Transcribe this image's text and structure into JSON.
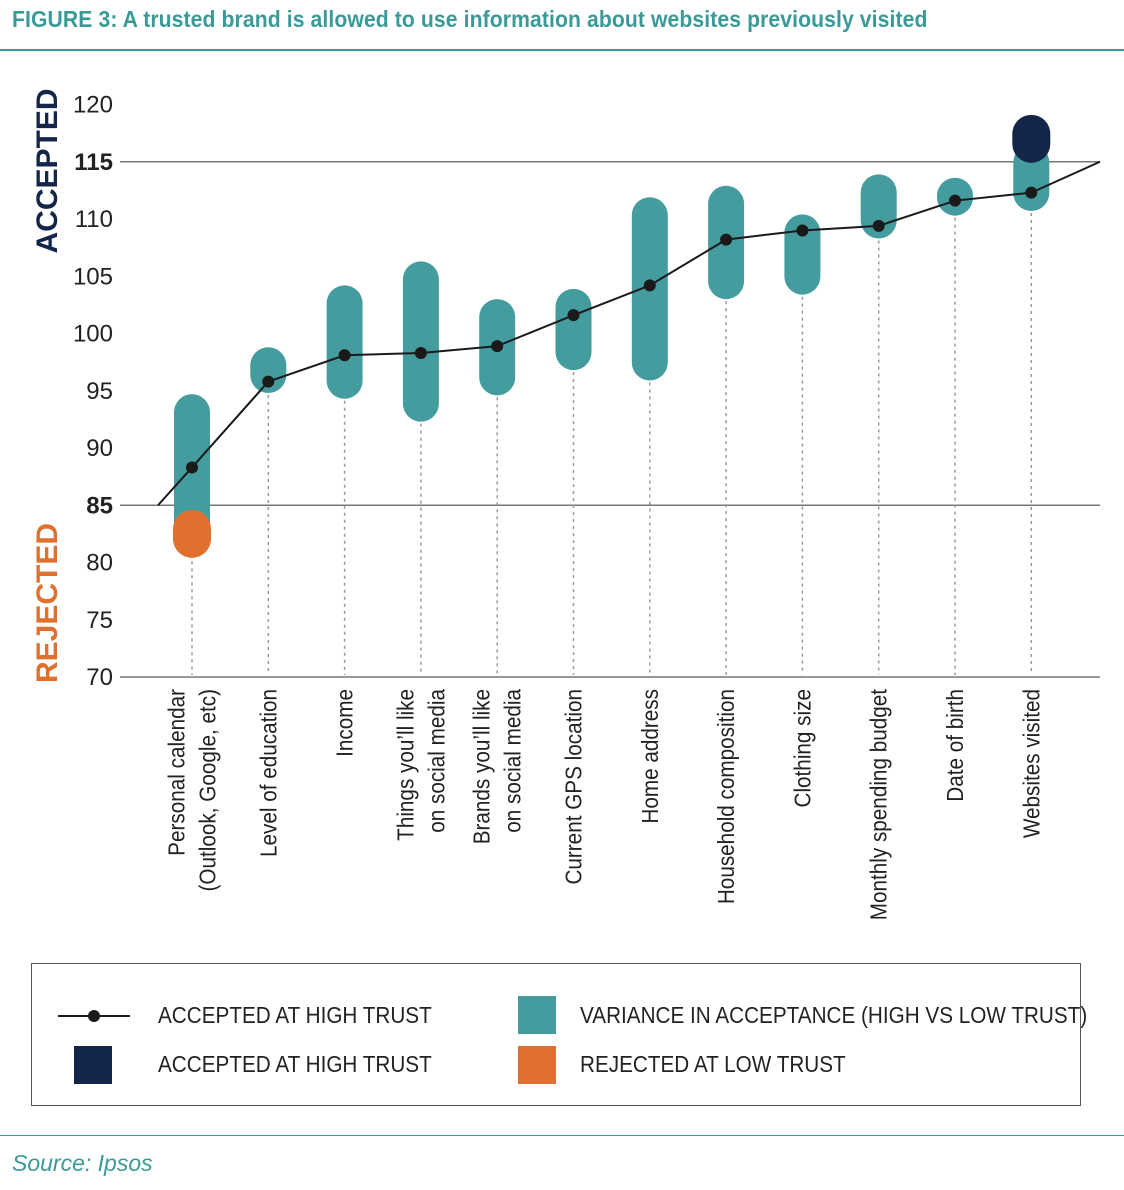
{
  "title": "FIGURE 3: A trusted brand is allowed to use information about websites previously visited",
  "source": "Source: Ipsos",
  "colors": {
    "accent": "#3a9a98",
    "variance": "#449c9e",
    "high_trust": "#14254a",
    "low_trust": "#e0702e",
    "line": "#1a1a1a"
  },
  "chart_data": {
    "type": "range-line",
    "title": "FIGURE 3: A trusted brand is allowed to use information about websites previously visited",
    "ylim": [
      70,
      120
    ],
    "yticks": [
      70,
      75,
      80,
      85,
      90,
      95,
      100,
      105,
      110,
      115,
      120
    ],
    "bold_ticks": [
      85,
      115
    ],
    "thresholds": [
      85,
      115
    ],
    "zones": {
      "upper": "ACCEPTED",
      "lower": "REJECTED"
    },
    "categories": [
      [
        "Personal calendar",
        "(Outlook, Google, etc)"
      ],
      [
        "Level of education"
      ],
      [
        "Income"
      ],
      [
        "Things you’ll like",
        "on social media"
      ],
      [
        "Brands you’ll like",
        "on social media"
      ],
      [
        "Current GPS location"
      ],
      [
        "Home address"
      ],
      [
        "Household composition"
      ],
      [
        "Clothing size"
      ],
      [
        "Monthly spending budget"
      ],
      [
        "Date of birth"
      ],
      [
        "Websites visited"
      ]
    ],
    "series": [
      {
        "name": "ACCEPTED AT HIGH TRUST",
        "kind": "line",
        "values": [
          88.3,
          95.8,
          98.1,
          98.3,
          98.9,
          101.6,
          104.2,
          108.2,
          109.0,
          109.4,
          111.6,
          112.3
        ]
      },
      {
        "name": "VARIANCE IN ACCEPTANCE (HIGH VS LOW TRUST)",
        "kind": "range",
        "low": [
          81.5,
          94.8,
          94.3,
          92.3,
          94.6,
          96.8,
          95.9,
          103.0,
          103.4,
          108.3,
          110.3,
          110.7
        ],
        "high": [
          94.7,
          98.8,
          104.2,
          106.3,
          103.0,
          103.9,
          111.9,
          112.9,
          110.4,
          113.9,
          113.6,
          116.5
        ]
      },
      {
        "name": "ACCEPTED AT HIGH TRUST",
        "kind": "marker",
        "index": 11,
        "value": 117.0
      },
      {
        "name": "REJECTED AT LOW TRUST",
        "kind": "marker",
        "index": 0,
        "value": 82.5
      }
    ],
    "line_extension": {
      "start": 85,
      "end": 115
    }
  },
  "legend": {
    "items": [
      {
        "label": "ACCEPTED AT HIGH TRUST",
        "symbol": "line-dot"
      },
      {
        "label": "ACCEPTED AT HIGH TRUST",
        "symbol": "navy-square"
      },
      {
        "label": "VARIANCE IN ACCEPTANCE (HIGH VS LOW TRUST)",
        "symbol": "teal-square"
      },
      {
        "label": "REJECTED AT LOW TRUST",
        "symbol": "orange-square"
      }
    ]
  }
}
